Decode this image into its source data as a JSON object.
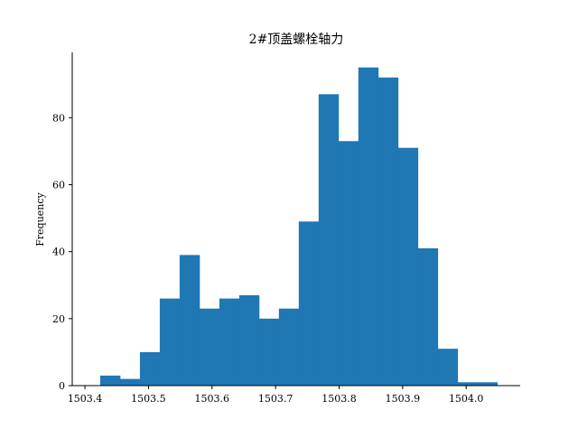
{
  "chart_data": {
    "type": "bar",
    "title": "2#顶盖螺栓轴力",
    "xlabel": "",
    "ylabel": "Frequency",
    "bar_color": "#1f77b4",
    "x_ticks": [
      "1503.4",
      "1503.5",
      "1503.6",
      "1503.7",
      "1503.8",
      "1503.9",
      "1504.0"
    ],
    "y_ticks": [
      "0",
      "20",
      "40",
      "60",
      "80"
    ],
    "x_tick_values": [
      1503.4,
      1503.5,
      1503.6,
      1503.7,
      1503.8,
      1503.9,
      1504.0
    ],
    "y_tick_values": [
      0,
      20,
      40,
      60,
      80
    ],
    "xlim": [
      1503.38,
      1504.085
    ],
    "ylim": [
      0,
      99.5
    ],
    "bin_start": 1503.424,
    "bin_width": 0.03125,
    "values": [
      3,
      2,
      10,
      26,
      39,
      23,
      26,
      27,
      20,
      23,
      49,
      87,
      73,
      95,
      92,
      71,
      41,
      11,
      1,
      1
    ],
    "grid": false,
    "legend": "none"
  }
}
